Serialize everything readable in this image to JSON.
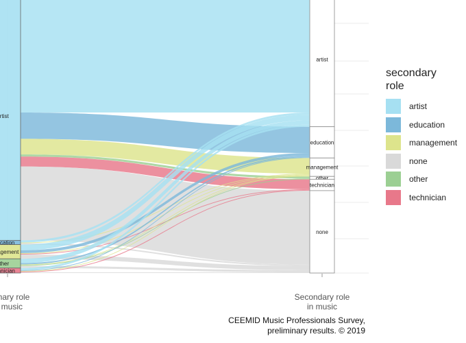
{
  "chart_data": {
    "type": "alluvial",
    "axes": [
      "Primary role\nin music",
      "Secondary role\nin music"
    ],
    "legend": {
      "title": "secondary\nrole",
      "position": "right",
      "items": [
        {
          "name": "artist",
          "color": "#a6e0f2"
        },
        {
          "name": "education",
          "color": "#7cb8da"
        },
        {
          "name": "management",
          "color": "#dde48c"
        },
        {
          "name": "none",
          "color": "#d9d9d9"
        },
        {
          "name": "other",
          "color": "#9ccf93"
        },
        {
          "name": "technician",
          "color": "#e8788a"
        }
      ]
    },
    "stratum_order": [
      "artist",
      "education",
      "management",
      "other",
      "technician",
      "none"
    ],
    "left_strata": [
      {
        "name": "artist",
        "label": "artist"
      },
      {
        "name": "education",
        "label": "education"
      },
      {
        "name": "management",
        "label": "management"
      },
      {
        "name": "other",
        "label": "other"
      },
      {
        "name": "technician",
        "label": "technician"
      }
    ],
    "right_strata": [
      {
        "name": "artist",
        "label": "artist"
      },
      {
        "name": "education",
        "label": "education"
      },
      {
        "name": "management",
        "label": "management"
      },
      {
        "name": "other",
        "label": "other"
      },
      {
        "name": "technician",
        "label": "technician"
      },
      {
        "name": "none",
        "label": "none"
      }
    ],
    "flows": [
      {
        "from": "artist",
        "to": "artist",
        "value": 170
      },
      {
        "from": "artist",
        "to": "education",
        "value": 37
      },
      {
        "from": "artist",
        "to": "management",
        "value": 22
      },
      {
        "from": "artist",
        "to": "other",
        "value": 3
      },
      {
        "from": "artist",
        "to": "technician",
        "value": 14
      },
      {
        "from": "artist",
        "to": "none",
        "value": 104
      },
      {
        "from": "education",
        "to": "artist",
        "value": 3
      },
      {
        "from": "education",
        "to": "management",
        "value": 1
      },
      {
        "from": "education",
        "to": "none",
        "value": 2
      },
      {
        "from": "management",
        "to": "artist",
        "value": 8
      },
      {
        "from": "management",
        "to": "education",
        "value": 4
      },
      {
        "from": "management",
        "to": "management",
        "value": 1
      },
      {
        "from": "management",
        "to": "technician",
        "value": 1
      },
      {
        "from": "management",
        "to": "none",
        "value": 6
      },
      {
        "from": "other",
        "to": "artist",
        "value": 6
      },
      {
        "from": "other",
        "to": "education",
        "value": 2
      },
      {
        "from": "other",
        "to": "management",
        "value": 1
      },
      {
        "from": "other",
        "to": "other",
        "value": 1
      },
      {
        "from": "other",
        "to": "none",
        "value": 3
      },
      {
        "from": "technician",
        "to": "artist",
        "value": 3
      },
      {
        "from": "technician",
        "to": "education",
        "value": 1
      },
      {
        "from": "technician",
        "to": "management",
        "value": 1
      },
      {
        "from": "technician",
        "to": "technician",
        "value": 1
      },
      {
        "from": "technician",
        "to": "none",
        "value": 1
      }
    ],
    "grid": true
  },
  "caption": {
    "line1": "CEEMID Music Professionals Survey,",
    "line2": "preliminary results. © 2019"
  }
}
